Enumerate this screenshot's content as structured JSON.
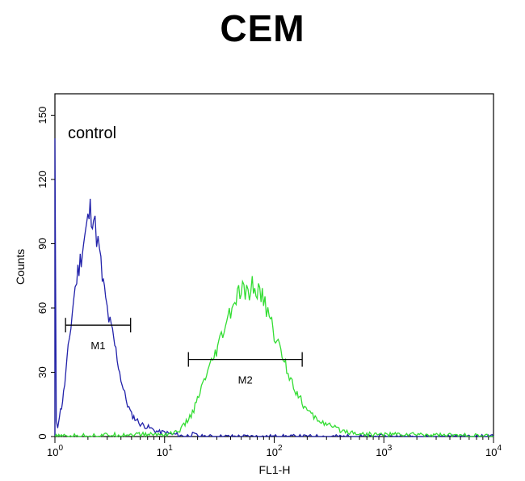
{
  "chart_data": {
    "type": "line",
    "title": "CEM",
    "xlabel": "FL1-H",
    "ylabel": "Counts",
    "x_scale": "log",
    "xlim": [
      1,
      10000
    ],
    "ylim": [
      0,
      160
    ],
    "x_ticks": [
      {
        "value": 1,
        "base": "10",
        "exp": "0"
      },
      {
        "value": 10,
        "base": "10",
        "exp": "1"
      },
      {
        "value": 100,
        "base": "10",
        "exp": "2"
      },
      {
        "value": 1000,
        "base": "10",
        "exp": "3"
      },
      {
        "value": 10000,
        "base": "10",
        "exp": "4"
      }
    ],
    "y_ticks": [
      0,
      30,
      60,
      90,
      120,
      150
    ],
    "annotation": "control",
    "grid": false,
    "series": [
      {
        "color": "#2222aa",
        "x": [
          1.0,
          1.0,
          1.03,
          1.06,
          1.1,
          1.15,
          1.2,
          1.26,
          1.32,
          1.4,
          1.48,
          1.58,
          1.7,
          1.82,
          1.95,
          2.1,
          2.25,
          2.4,
          2.55,
          2.7,
          2.9,
          3.1,
          3.35,
          3.6,
          3.9,
          4.2,
          4.6,
          5.0,
          5.5,
          6.0,
          6.6,
          7.3,
          8.0,
          9.0,
          10.0,
          11.5,
          13.0,
          15.0,
          18.0,
          22.0,
          30.0,
          50.0,
          100.0,
          1000.0,
          10000.0
        ],
        "y": [
          0,
          132,
          8,
          5,
          10,
          14,
          20,
          30,
          40,
          52,
          64,
          74,
          82,
          90,
          98,
          106,
          102,
          94,
          86,
          74,
          64,
          55,
          48,
          40,
          30,
          22,
          15,
          10,
          8,
          6,
          5,
          4,
          3,
          2,
          2,
          1,
          1,
          0,
          1,
          0,
          0,
          0,
          0,
          0,
          0
        ]
      },
      {
        "color": "#33dd33",
        "x": [
          1.0,
          5.0,
          10.0,
          13.0,
          15.0,
          17.0,
          19.0,
          21.0,
          23.0,
          26.0,
          29.0,
          32.0,
          36.0,
          40.0,
          45.0,
          50.0,
          56.0,
          63.0,
          70.0,
          80.0,
          90.0,
          100.0,
          115.0,
          130.0,
          150.0,
          170.0,
          200.0,
          230.0,
          270.0,
          320.0,
          400.0,
          500.0,
          700.0,
          1000.0,
          2000.0,
          10000.0
        ],
        "y": [
          0,
          1,
          1,
          2,
          5,
          9,
          14,
          20,
          26,
          32,
          38,
          44,
          52,
          58,
          64,
          68,
          66,
          70,
          68,
          64,
          56,
          48,
          40,
          32,
          24,
          18,
          12,
          9,
          7,
          5,
          3,
          2,
          1,
          1,
          1,
          0
        ]
      }
    ],
    "markers": [
      {
        "label": "M1",
        "x_start": 1.25,
        "x_end": 4.9,
        "y": 52
      },
      {
        "label": "M2",
        "x_start": 16.5,
        "x_end": 180,
        "y": 36
      }
    ]
  }
}
